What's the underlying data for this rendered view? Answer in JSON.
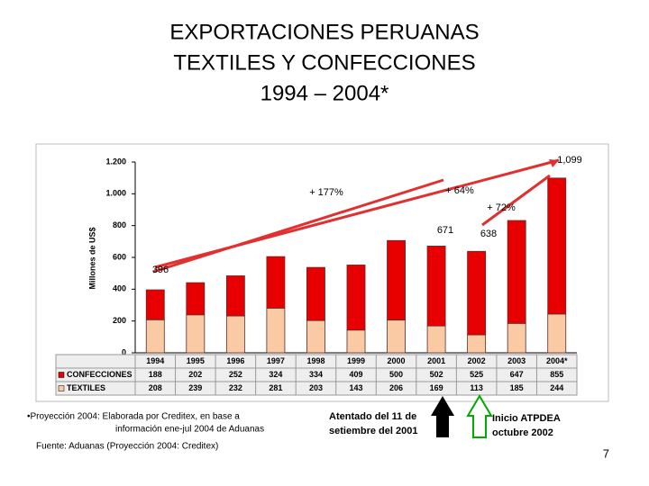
{
  "chart_data": {
    "type": "stacked_bar",
    "title": [
      "EXPORTACIONES PERUANAS",
      "TEXTILES Y CONFECCIONES",
      "1994 – 2004*"
    ],
    "y_label": "Millones de US$",
    "categories": [
      "1994",
      "1995",
      "1996",
      "1997",
      "1998",
      "1999",
      "2000",
      "2001",
      "2002",
      "2003",
      "2004*"
    ],
    "series": [
      {
        "name": "TEXTILES",
        "color": "#f9caa3",
        "values": [
          208,
          239,
          232,
          281,
          203,
          143,
          206,
          169,
          113,
          185,
          244
        ]
      },
      {
        "name": "CONFECCIONES",
        "color": "#e80000",
        "values": [
          188,
          202,
          252,
          324,
          334,
          409,
          500,
          502,
          525,
          647,
          855
        ]
      }
    ],
    "ylim": [
      0,
      1200
    ],
    "yticks": [
      0,
      200,
      400,
      600,
      800,
      {
        "value": 1000,
        "label": "1.000"
      },
      {
        "value": 1200,
        "label": "1.200"
      }
    ],
    "annotations": [
      "1,099",
      "+ 177%",
      "+ 64%",
      "+ 72%",
      "671",
      "638",
      "396"
    ],
    "notes": [
      "•Proyección 2004: Elaborada por Creditex, en base a",
      "información ene-jul 2004 de Aduanas",
      "Fuente: Aduanas (Proyección 2004: Creditex)",
      "Atentado del 11 de",
      "setiembre del 2001",
      "Inicio ATPDEA",
      "octubre 2002"
    ]
  },
  "page_number": "7"
}
